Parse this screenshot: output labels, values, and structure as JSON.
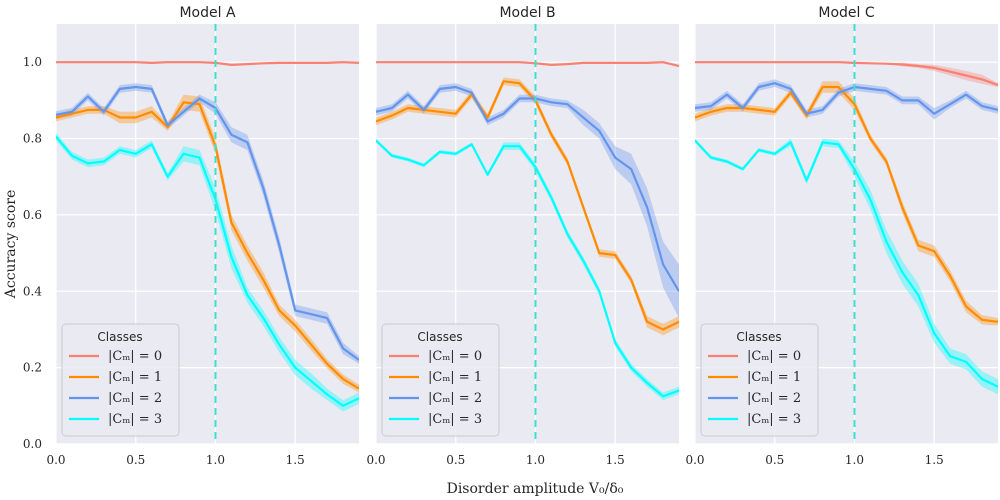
{
  "chart_data": {
    "type": "line",
    "xlabel": "Disorder amplitude V₀/δ₀",
    "ylabel": "Accuracy score",
    "xlim": [
      0,
      1.9
    ],
    "ylim": [
      0,
      1.1
    ],
    "xticks": [
      "0.0",
      "0.5",
      "1.0",
      "1.5"
    ],
    "yticks": [
      "0.0",
      "0.2",
      "0.4",
      "0.6",
      "0.8",
      "1.0"
    ],
    "grid": true,
    "legend": {
      "title": "Classes",
      "placement": "lower-left"
    },
    "reference_line": {
      "x": 1.0,
      "style": "dashed",
      "color": "#40E0D0"
    },
    "colors": {
      "C0": "#FA8072",
      "C1": "#FF8C00",
      "C2": "#6495ED",
      "C3": "#00FFFF",
      "plot_bg": "#EAEAF2"
    },
    "x": [
      0.0,
      0.1,
      0.2,
      0.3,
      0.4,
      0.5,
      0.6,
      0.7,
      0.8,
      0.9,
      1.0,
      1.1,
      1.2,
      1.3,
      1.4,
      1.5,
      1.6,
      1.7,
      1.8,
      1.9
    ],
    "panels": [
      {
        "title": "Model A",
        "series": [
          {
            "name": "|Cₘ| = 0",
            "values": [
              1.0,
              1.0,
              1.0,
              1.0,
              1.0,
              1.0,
              0.998,
              1.0,
              1.0,
              1.0,
              0.998,
              0.993,
              0.995,
              0.997,
              0.998,
              0.998,
              0.998,
              0.998,
              1.0,
              0.998
            ],
            "band": [
              0,
              0,
              0,
              0,
              0,
              0,
              0,
              0,
              0,
              0,
              0,
              0,
              0,
              0,
              0,
              0,
              0,
              0,
              0,
              0
            ]
          },
          {
            "name": "|Cₘ| = 1",
            "values": [
              0.855,
              0.865,
              0.875,
              0.875,
              0.855,
              0.855,
              0.87,
              0.83,
              0.895,
              0.89,
              0.78,
              0.58,
              0.5,
              0.43,
              0.35,
              0.31,
              0.26,
              0.21,
              0.17,
              0.145
            ],
            "band": [
              0.01,
              0.01,
              0.01,
              0.01,
              0.015,
              0.015,
              0.015,
              0.01,
              0.02,
              0.02,
              0.02,
              0.02,
              0.02,
              0.02,
              0.015,
              0.015,
              0.015,
              0.012,
              0.012,
              0.01
            ]
          },
          {
            "name": "|Cₘ| = 2",
            "values": [
              0.862,
              0.87,
              0.91,
              0.87,
              0.93,
              0.935,
              0.93,
              0.835,
              0.87,
              0.905,
              0.88,
              0.81,
              0.79,
              0.67,
              0.52,
              0.35,
              0.34,
              0.33,
              0.25,
              0.22
            ],
            "band": [
              0.01,
              0.01,
              0.01,
              0.01,
              0.01,
              0.01,
              0.01,
              0.01,
              0.01,
              0.01,
              0.015,
              0.02,
              0.02,
              0.02,
              0.02,
              0.015,
              0.015,
              0.015,
              0.015,
              0.01
            ]
          },
          {
            "name": "|Cₘ| = 3",
            "values": [
              0.805,
              0.755,
              0.735,
              0.74,
              0.77,
              0.76,
              0.785,
              0.7,
              0.76,
              0.75,
              0.64,
              0.49,
              0.39,
              0.33,
              0.26,
              0.2,
              0.165,
              0.13,
              0.1,
              0.12
            ],
            "band": [
              0.01,
              0.01,
              0.01,
              0.01,
              0.01,
              0.01,
              0.01,
              0.01,
              0.02,
              0.02,
              0.03,
              0.03,
              0.02,
              0.02,
              0.02,
              0.02,
              0.02,
              0.015,
              0.015,
              0.015
            ]
          }
        ]
      },
      {
        "title": "Model B",
        "series": [
          {
            "name": "|Cₘ| = 0",
            "values": [
              1.0,
              1.0,
              1.0,
              1.0,
              1.0,
              1.0,
              1.0,
              1.0,
              1.0,
              1.0,
              0.997,
              0.993,
              0.995,
              0.998,
              0.998,
              0.998,
              0.998,
              0.998,
              1.0,
              0.99
            ],
            "band": [
              0,
              0,
              0,
              0,
              0,
              0,
              0,
              0,
              0,
              0,
              0,
              0,
              0,
              0,
              0,
              0,
              0,
              0,
              0,
              0
            ]
          },
          {
            "name": "|Cₘ| = 1",
            "values": [
              0.845,
              0.86,
              0.88,
              0.875,
              0.87,
              0.865,
              0.915,
              0.855,
              0.95,
              0.945,
              0.9,
              0.81,
              0.74,
              0.62,
              0.5,
              0.495,
              0.43,
              0.32,
              0.3,
              0.32
            ],
            "band": [
              0.01,
              0.01,
              0.01,
              0.01,
              0.01,
              0.01,
              0.01,
              0.01,
              0.01,
              0.01,
              0.01,
              0.01,
              0.01,
              0.01,
              0.01,
              0.01,
              0.01,
              0.015,
              0.015,
              0.015
            ]
          },
          {
            "name": "|Cₘ| = 2",
            "values": [
              0.87,
              0.88,
              0.915,
              0.875,
              0.93,
              0.935,
              0.92,
              0.845,
              0.865,
              0.905,
              0.905,
              0.895,
              0.89,
              0.855,
              0.82,
              0.75,
              0.72,
              0.62,
              0.47,
              0.4
            ],
            "band": [
              0.01,
              0.01,
              0.01,
              0.01,
              0.01,
              0.01,
              0.01,
              0.01,
              0.01,
              0.01,
              0.01,
              0.01,
              0.01,
              0.02,
              0.02,
              0.03,
              0.04,
              0.05,
              0.06,
              0.07
            ]
          },
          {
            "name": "|Cₘ| = 3",
            "values": [
              0.795,
              0.755,
              0.745,
              0.73,
              0.765,
              0.76,
              0.785,
              0.705,
              0.78,
              0.78,
              0.725,
              0.645,
              0.55,
              0.48,
              0.4,
              0.265,
              0.2,
              0.16,
              0.125,
              0.14
            ],
            "band": [
              0.005,
              0.005,
              0.005,
              0.005,
              0.005,
              0.005,
              0.005,
              0.005,
              0.01,
              0.01,
              0.01,
              0.01,
              0.01,
              0.01,
              0.01,
              0.01,
              0.01,
              0.01,
              0.01,
              0.01
            ]
          }
        ]
      },
      {
        "title": "Model C",
        "series": [
          {
            "name": "|Cₘ| = 0",
            "values": [
              1.0,
              1.0,
              1.0,
              1.0,
              1.0,
              1.0,
              1.0,
              1.0,
              1.0,
              1.0,
              0.998,
              0.997,
              0.996,
              0.994,
              0.99,
              0.985,
              0.975,
              0.965,
              0.955,
              0.94
            ],
            "band": [
              0,
              0,
              0,
              0,
              0,
              0,
              0,
              0,
              0,
              0,
              0,
              0,
              0,
              0.005,
              0.005,
              0.008,
              0.01,
              0.012,
              0.012,
              0.005
            ]
          },
          {
            "name": "|Cₘ| = 1",
            "values": [
              0.855,
              0.87,
              0.88,
              0.88,
              0.875,
              0.87,
              0.92,
              0.86,
              0.935,
              0.935,
              0.89,
              0.8,
              0.74,
              0.62,
              0.52,
              0.505,
              0.44,
              0.36,
              0.325,
              0.32
            ],
            "band": [
              0.01,
              0.01,
              0.01,
              0.01,
              0.01,
              0.01,
              0.01,
              0.01,
              0.015,
              0.015,
              0.015,
              0.01,
              0.01,
              0.015,
              0.015,
              0.015,
              0.015,
              0.015,
              0.012,
              0.01
            ]
          },
          {
            "name": "|Cₘ| = 2",
            "values": [
              0.88,
              0.885,
              0.915,
              0.88,
              0.935,
              0.945,
              0.93,
              0.865,
              0.875,
              0.92,
              0.935,
              0.93,
              0.925,
              0.9,
              0.9,
              0.865,
              0.89,
              0.915,
              0.885,
              0.875
            ],
            "band": [
              0.01,
              0.01,
              0.01,
              0.01,
              0.01,
              0.01,
              0.01,
              0.01,
              0.01,
              0.01,
              0.01,
              0.01,
              0.01,
              0.01,
              0.01,
              0.015,
              0.01,
              0.01,
              0.01,
              0.01
            ]
          },
          {
            "name": "|Cₘ| = 3",
            "values": [
              0.795,
              0.75,
              0.74,
              0.72,
              0.77,
              0.76,
              0.79,
              0.69,
              0.79,
              0.785,
              0.72,
              0.64,
              0.53,
              0.45,
              0.39,
              0.29,
              0.23,
              0.215,
              0.17,
              0.15
            ],
            "band": [
              0.005,
              0.005,
              0.005,
              0.005,
              0.005,
              0.005,
              0.01,
              0.01,
              0.01,
              0.01,
              0.02,
              0.025,
              0.03,
              0.03,
              0.03,
              0.025,
              0.02,
              0.02,
              0.02,
              0.02
            ]
          }
        ]
      }
    ]
  }
}
